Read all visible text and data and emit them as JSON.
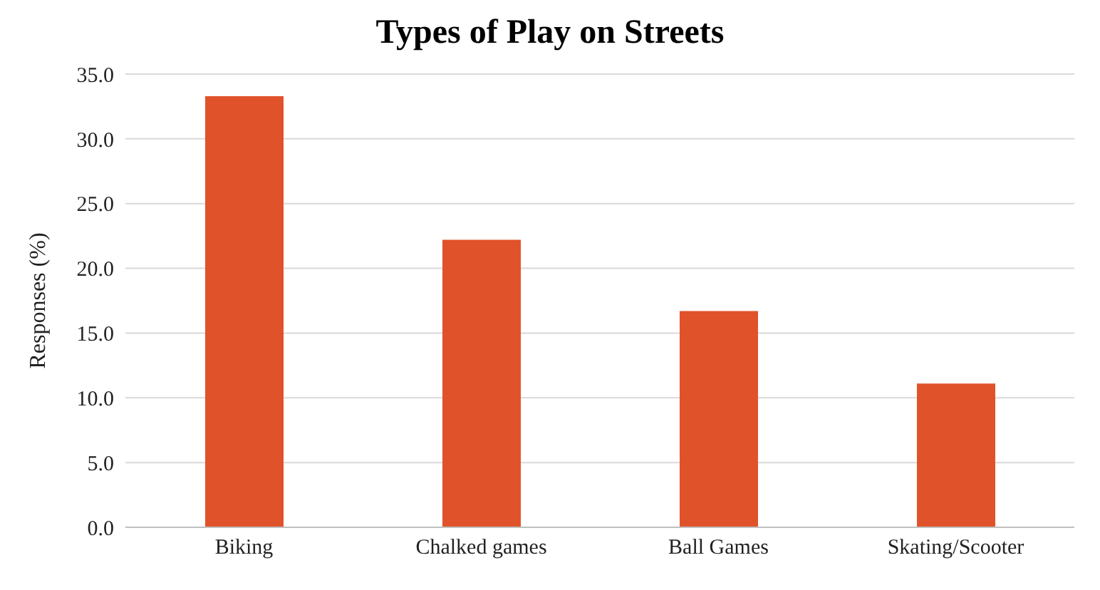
{
  "chart_data": {
    "type": "bar",
    "title": "Types of Play on Streets",
    "ylabel": "Responses (%)",
    "categories": [
      "Biking",
      "Chalked games",
      "Ball Games",
      "Skating/Scooter"
    ],
    "values": [
      33.3,
      22.2,
      16.7,
      11.1
    ],
    "color": "#e0532a",
    "ylim": [
      0,
      35
    ],
    "yticks": [
      {
        "value": 0,
        "label": "0.0"
      },
      {
        "value": 5,
        "label": "5.0"
      },
      {
        "value": 10,
        "label": "10.0"
      },
      {
        "value": 15,
        "label": "15.0"
      },
      {
        "value": 20,
        "label": "20.0"
      },
      {
        "value": 25,
        "label": "25.0"
      },
      {
        "value": 30,
        "label": "30.0"
      },
      {
        "value": 35,
        "label": "35.0"
      }
    ],
    "grid": "y"
  }
}
